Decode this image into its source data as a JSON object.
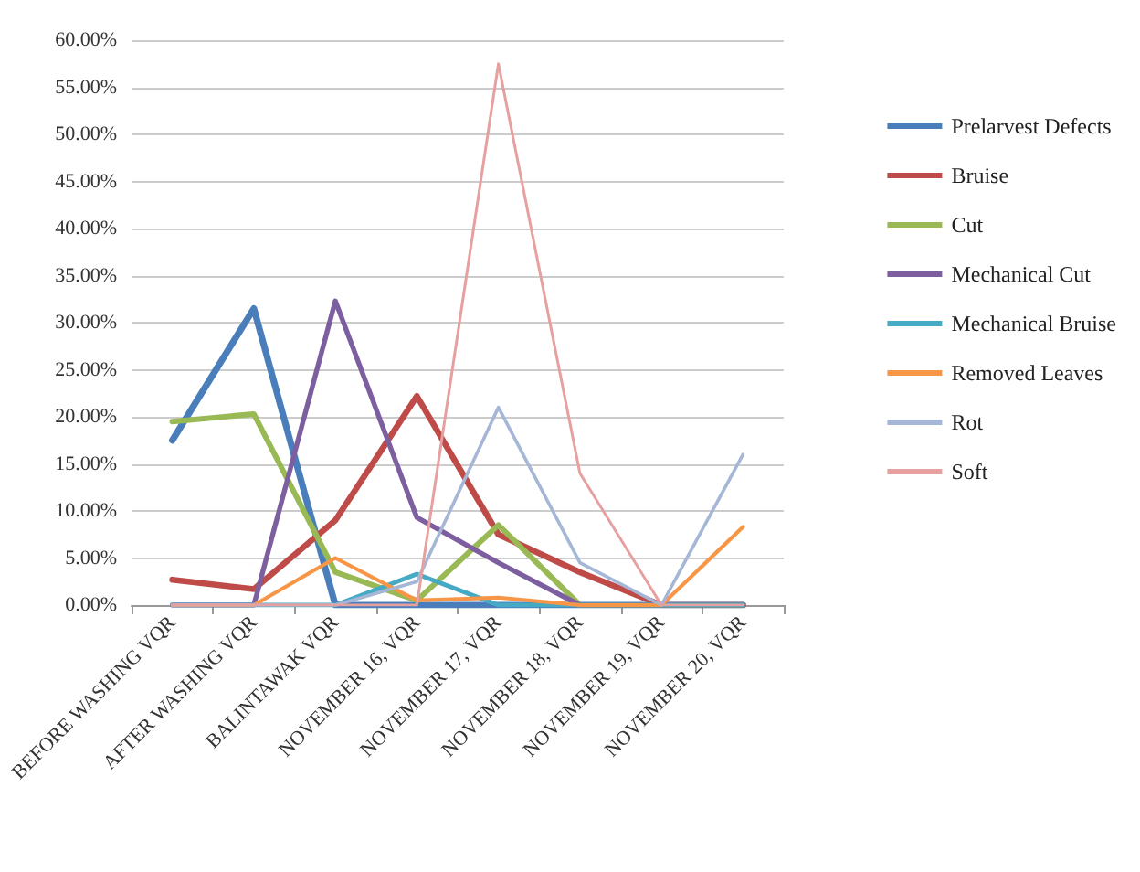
{
  "chart_data": {
    "type": "line",
    "categories": [
      "BEFORE WASHING VQR",
      "AFTER WASHING VQR",
      "BALINTAWAK VQR",
      "NOVEMBER 16, VQR",
      "NOVEMBER 17, VQR",
      "NOVEMBER 18, VQR",
      "NOVEMBER 19, VQR",
      "NOVEMBER 20, VQR"
    ],
    "series": [
      {
        "name": "Prelarvest Defects",
        "color": "#4a7ebb",
        "values": [
          17.5,
          31.5,
          0,
          0,
          0,
          0,
          0,
          0
        ]
      },
      {
        "name": "Bruise",
        "color": "#be4b48",
        "values": [
          2.7,
          1.7,
          9,
          22.2,
          7.5,
          3.5,
          0,
          0
        ]
      },
      {
        "name": "Cut",
        "color": "#98b954",
        "values": [
          19.5,
          20.3,
          3.5,
          0.5,
          8.5,
          0,
          0,
          0
        ]
      },
      {
        "name": "Mechanical Cut",
        "color": "#7d5fa0",
        "values": [
          0,
          0,
          32.3,
          9.3,
          4.5,
          0,
          0,
          0
        ]
      },
      {
        "name": "Mechanical Bruise",
        "color": "#46aac5",
        "values": [
          0,
          0,
          0,
          3.3,
          0,
          0,
          0,
          0
        ]
      },
      {
        "name": "Removed Leaves",
        "color": "#f79646",
        "values": [
          0,
          0,
          5,
          0.5,
          0.8,
          0,
          0,
          8.3
        ]
      },
      {
        "name": "Rot",
        "color": "#a5b6d6",
        "values": [
          0,
          0,
          0,
          2.5,
          21,
          4.5,
          0,
          16
        ]
      },
      {
        "name": "Soft",
        "color": "#e6a0a0",
        "values": [
          0,
          0,
          0,
          0,
          57.5,
          14,
          0,
          0
        ]
      }
    ],
    "ylim": [
      0,
      60
    ],
    "yticks": [
      {
        "value": 0,
        "label": "0.00%"
      },
      {
        "value": 5,
        "label": "5.00%"
      },
      {
        "value": 10,
        "label": "10.00%"
      },
      {
        "value": 15,
        "label": "15.00%"
      },
      {
        "value": 20,
        "label": "20.00%"
      },
      {
        "value": 25,
        "label": "25.00%"
      },
      {
        "value": 30,
        "label": "30.00%"
      },
      {
        "value": 35,
        "label": "35.00%"
      },
      {
        "value": 40,
        "label": "40.00%"
      },
      {
        "value": 45,
        "label": "45.00%"
      },
      {
        "value": 50,
        "label": "50.00%"
      },
      {
        "value": 55,
        "label": "55.00%"
      },
      {
        "value": 60,
        "label": "60.00%"
      }
    ],
    "grid": "y",
    "legend": "right",
    "marker": "none",
    "line_style": "solid"
  }
}
